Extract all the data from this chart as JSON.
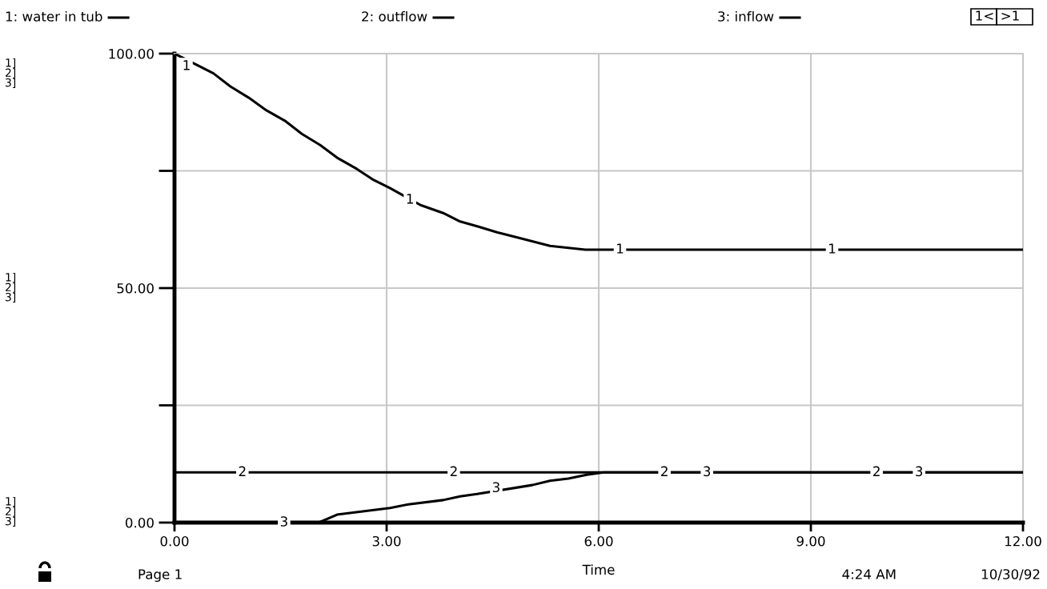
{
  "chart_data": {
    "type": "line",
    "xlabel": "Time",
    "xlim": [
      0,
      12
    ],
    "xticks": [
      {
        "value": 0,
        "label": "0.00"
      },
      {
        "value": 3,
        "label": "3.00"
      },
      {
        "value": 6,
        "label": "6.00"
      },
      {
        "value": 9,
        "label": "9.00"
      },
      {
        "value": 12,
        "label": "12.00"
      }
    ],
    "ylim": [
      0,
      100
    ],
    "yticks": [
      {
        "value": 0,
        "label": "0.00"
      },
      {
        "value": 25,
        "label": null
      },
      {
        "value": 50,
        "label": "50.00"
      },
      {
        "value": 75,
        "label": null
      },
      {
        "value": 100,
        "label": "100.00"
      }
    ],
    "grid": true,
    "legend": "top",
    "marker": "none",
    "line_style": "solid",
    "series": [
      {
        "name": "1: water in tub",
        "color": "#000000",
        "x": [
          0,
          0.55,
          0.79,
          1.05,
          1.3,
          1.56,
          1.8,
          2.06,
          2.3,
          2.58,
          2.8,
          3.05,
          3.48,
          3.8,
          4.04,
          4.3,
          4.56,
          4.85,
          5.31,
          5.81,
          12
        ],
        "values": [
          100,
          95.8,
          93.0,
          90.6,
          87.9,
          85.7,
          82.9,
          80.5,
          77.8,
          75.4,
          73.2,
          71.3,
          67.7,
          66.0,
          64.2,
          63.1,
          61.9,
          60.8,
          59.0,
          58.2,
          58.2
        ]
      },
      {
        "name": "2: outflow",
        "color": "#000000",
        "x": [
          0,
          12
        ],
        "values": [
          10.7,
          10.7
        ]
      },
      {
        "name": "3: inflow",
        "color": "#000000",
        "x": [
          0,
          2.04,
          2.3,
          3.05,
          3.31,
          3.8,
          4.04,
          4.28,
          5.06,
          5.31,
          5.57,
          5.83,
          6.07,
          12
        ],
        "values": [
          0,
          0,
          1.7,
          3.1,
          3.9,
          4.8,
          5.6,
          6.1,
          8.0,
          8.9,
          9.4,
          10.2,
          10.7,
          10.7
        ]
      }
    ],
    "annotations": [
      {
        "text": "1",
        "x": 0.17,
        "y": 97.3
      },
      {
        "text": "1",
        "x": 3.33,
        "y": 68.8
      },
      {
        "text": "1",
        "x": 6.3,
        "y": 58.2
      },
      {
        "text": "1",
        "x": 9.3,
        "y": 58.2
      },
      {
        "text": "2",
        "x": 0.96,
        "y": 10.7
      },
      {
        "text": "2",
        "x": 3.95,
        "y": 10.7
      },
      {
        "text": "2",
        "x": 6.93,
        "y": 10.7
      },
      {
        "text": "2",
        "x": 9.93,
        "y": 10.7
      },
      {
        "text": "3",
        "x": 1.55,
        "y": 0
      },
      {
        "text": "3",
        "x": 4.55,
        "y": 7.3
      },
      {
        "text": "3",
        "x": 7.53,
        "y": 10.7
      },
      {
        "text": "3",
        "x": 10.53,
        "y": 10.7
      },
      "1]\n2]\n3]",
      "1]\n2]\n3]",
      "1]\n2]\n3]",
      "1<",
      ">1",
      "Page 1",
      "4:24 AM",
      "10/30/92"
    ]
  }
}
